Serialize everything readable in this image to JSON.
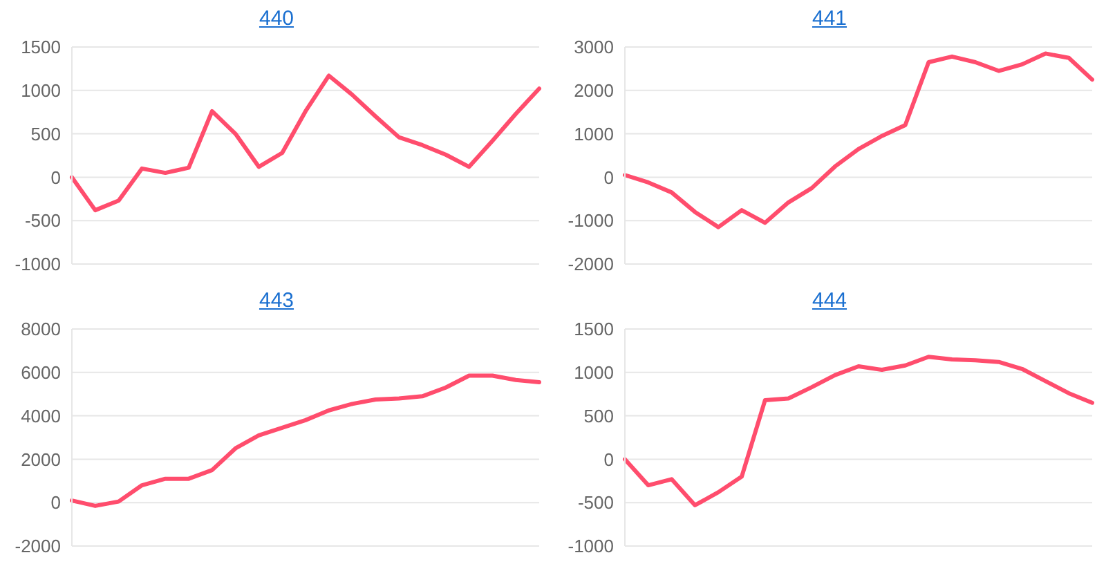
{
  "chart_data": [
    {
      "type": "line",
      "title": "440",
      "categories": [
        null,
        null,
        null,
        null,
        null,
        null,
        null,
        null,
        null,
        null,
        null,
        null,
        null,
        null,
        null,
        null,
        null,
        null,
        null,
        null,
        null
      ],
      "color": "#ff4d6d",
      "marker": "none",
      "line_style": "solid",
      "grid": "y",
      "tick_labels": "y",
      "ylim": [
        -1000,
        1500
      ],
      "yticks": [
        -1000,
        -500,
        0,
        500,
        1000,
        1500
      ],
      "values": [
        0,
        -380,
        -270,
        100,
        50,
        110,
        760,
        500,
        120,
        280,
        760,
        1170,
        950,
        700,
        460,
        370,
        260,
        120,
        420,
        730,
        1020
      ]
    },
    {
      "type": "line",
      "title": "441",
      "categories": [
        null,
        null,
        null,
        null,
        null,
        null,
        null,
        null,
        null,
        null,
        null,
        null,
        null,
        null,
        null,
        null,
        null,
        null,
        null,
        null,
        null
      ],
      "color": "#ff4d6d",
      "marker": "none",
      "line_style": "solid",
      "grid": "y",
      "tick_labels": "y",
      "ylim": [
        -2000,
        3000
      ],
      "yticks": [
        -2000,
        -1000,
        0,
        1000,
        2000,
        3000
      ],
      "values": [
        50,
        -120,
        -350,
        -800,
        -1150,
        -760,
        -1050,
        -580,
        -250,
        250,
        650,
        950,
        1200,
        2650,
        2780,
        2650,
        2450,
        2600,
        2850,
        2750,
        2250
      ]
    },
    {
      "type": "line",
      "title": "443",
      "categories": [
        null,
        null,
        null,
        null,
        null,
        null,
        null,
        null,
        null,
        null,
        null,
        null,
        null,
        null,
        null,
        null,
        null,
        null,
        null,
        null,
        null
      ],
      "color": "#ff4d6d",
      "marker": "none",
      "line_style": "solid",
      "grid": "y",
      "tick_labels": "y",
      "ylim": [
        -2000,
        8000
      ],
      "yticks": [
        -2000,
        0,
        2000,
        4000,
        6000,
        8000
      ],
      "values": [
        100,
        -150,
        50,
        800,
        1100,
        1100,
        1500,
        2500,
        3100,
        3450,
        3800,
        4250,
        4550,
        4750,
        4800,
        4900,
        5300,
        5850,
        5850,
        5650,
        5550
      ]
    },
    {
      "type": "line",
      "title": "444",
      "categories": [
        null,
        null,
        null,
        null,
        null,
        null,
        null,
        null,
        null,
        null,
        null,
        null,
        null,
        null,
        null,
        null,
        null,
        null,
        null,
        null,
        null
      ],
      "color": "#ff4d6d",
      "marker": "none",
      "line_style": "solid",
      "grid": "y",
      "tick_labels": "y",
      "ylim": [
        -1000,
        1500
      ],
      "yticks": [
        -1000,
        -500,
        0,
        500,
        1000,
        1500
      ],
      "values": [
        0,
        -300,
        -230,
        -530,
        -380,
        -200,
        680,
        700,
        830,
        970,
        1070,
        1030,
        1080,
        1180,
        1150,
        1140,
        1120,
        1040,
        900,
        760,
        650
      ]
    }
  ]
}
